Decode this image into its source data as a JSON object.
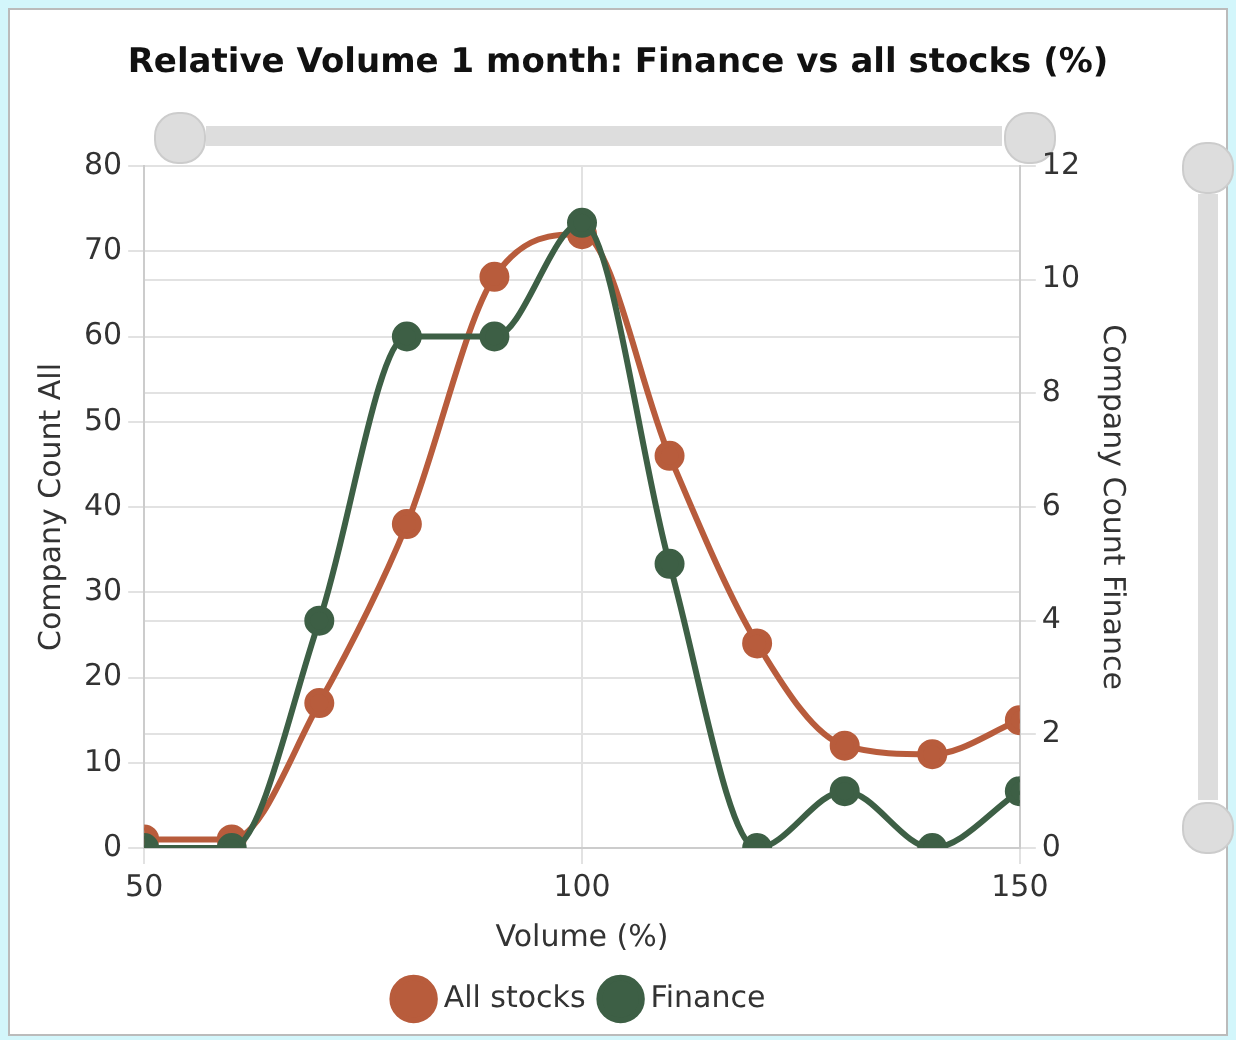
{
  "chart_data": {
    "type": "line",
    "title": "Relative Volume 1 month: Finance vs all stocks (%)",
    "xlabel": "Volume (%)",
    "ylabel": "Company Count All",
    "y2label": "Company Count Finance",
    "x": [
      50,
      60,
      70,
      80,
      90,
      100,
      110,
      120,
      130,
      140,
      150
    ],
    "series": [
      {
        "name": "All stocks",
        "color": "#b85c3c",
        "values": [
          1,
          1,
          17,
          38,
          67,
          72,
          46,
          24,
          12,
          11,
          15
        ]
      },
      {
        "name": "Finance",
        "color": "#3d5f45",
        "axis": "y2",
        "values": [
          0,
          0,
          4,
          9,
          9,
          11,
          5,
          0,
          1,
          0,
          1
        ]
      }
    ],
    "xlim": [
      50,
      150
    ],
    "xticks": [
      50,
      100,
      150
    ],
    "ylim": [
      0,
      80
    ],
    "yticks": [
      0,
      10,
      20,
      30,
      40,
      50,
      60,
      70,
      80
    ],
    "y2lim": [
      0,
      12
    ],
    "y2ticks": [
      0,
      2,
      4,
      6,
      8,
      10,
      12
    ],
    "grid": true,
    "legend": "bottom",
    "marker": "circle",
    "line_style": "solid"
  }
}
